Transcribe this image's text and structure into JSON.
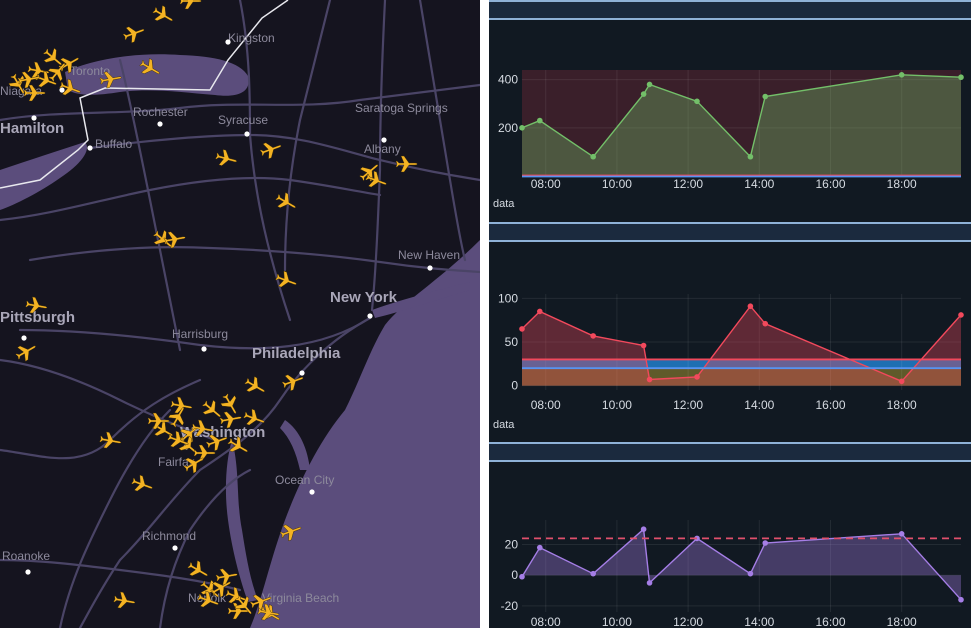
{
  "map": {
    "cities": [
      {
        "name": "Kingston",
        "big": false
      },
      {
        "name": "Rochester",
        "big": false
      },
      {
        "name": "Syracuse",
        "big": false
      },
      {
        "name": "Saratoga Springs",
        "big": false
      },
      {
        "name": "Albany",
        "big": false
      },
      {
        "name": "Hamilton",
        "big": true
      },
      {
        "name": "Buffalo",
        "big": false
      },
      {
        "name": "New Haven",
        "big": false
      },
      {
        "name": "New York",
        "big": true
      },
      {
        "name": "Pittsburgh",
        "big": true
      },
      {
        "name": "Harrisburg",
        "big": false
      },
      {
        "name": "Philadelphia",
        "big": true
      },
      {
        "name": "Washington",
        "big": true
      },
      {
        "name": "Fairfax",
        "big": false
      },
      {
        "name": "Ocean City",
        "big": false
      },
      {
        "name": "Richmond",
        "big": false
      },
      {
        "name": "Roanoke",
        "big": false
      },
      {
        "name": "Norfolk",
        "big": false
      },
      {
        "name": "Virginia Beach",
        "big": false
      },
      {
        "name": "Niagara",
        "big": false
      },
      {
        "name": "Toronto",
        "big": false
      }
    ],
    "aircraft_count": 58,
    "colors": {
      "land": "#15141f",
      "water": "#5b4d7c",
      "roads": "#4a4466",
      "aircraft": "#f4b323",
      "border": "#e8e8ee"
    }
  },
  "panels": [
    {
      "title": "",
      "chart_data": {
        "type": "area",
        "x_label": "data",
        "x_ticks": [
          "08:00",
          "10:00",
          "12:00",
          "14:00",
          "16:00",
          "18:00"
        ],
        "y_ticks": [
          200,
          400
        ],
        "ylim": [
          0,
          440
        ],
        "xlim": [
          "07:20",
          "19:40"
        ],
        "thresholds": [
          {
            "value": 2,
            "color": "#f2495c"
          },
          {
            "value": -2,
            "color": "#5794f2"
          }
        ],
        "bands": [
          {
            "from": 0,
            "to": 440,
            "color": "#3a1f2a"
          }
        ],
        "series": [
          {
            "color": "#73bf69",
            "x": [
              "07:20",
              "07:50",
              "09:20",
              "10:45",
              "10:55",
              "12:15",
              "13:45",
              "14:10",
              "18:00",
              "19:40"
            ],
            "values": [
              200,
              230,
              80,
              340,
              380,
              310,
              80,
              330,
              420,
              410
            ]
          }
        ]
      }
    },
    {
      "title": "",
      "chart_data": {
        "type": "area",
        "x_label": "data",
        "x_ticks": [
          "08:00",
          "10:00",
          "12:00",
          "14:00",
          "16:00",
          "18:00"
        ],
        "y_ticks": [
          0,
          50,
          100
        ],
        "ylim": [
          -5,
          105
        ],
        "xlim": [
          "07:20",
          "19:40"
        ],
        "thresholds": [
          {
            "value": 30,
            "color": "#f2495c"
          },
          {
            "value": 20,
            "color": "#5794f2"
          }
        ],
        "bands": [
          {
            "from": 0,
            "to": 30,
            "color": "#5f5a2a"
          },
          {
            "from": 20,
            "to": 30,
            "color": "#1f6fb2"
          }
        ],
        "series": [
          {
            "color": "#f2495c",
            "x": [
              "07:20",
              "07:50",
              "09:20",
              "10:45",
              "10:55",
              "12:15",
              "13:45",
              "14:10",
              "18:00",
              "19:40"
            ],
            "values": [
              65,
              85,
              57,
              46,
              7,
              10,
              91,
              71,
              5,
              81
            ]
          }
        ]
      }
    },
    {
      "title": "",
      "chart_data": {
        "type": "area",
        "x_label": "",
        "x_ticks": [
          "08:00",
          "10:00",
          "12:00",
          "14:00",
          "16:00",
          "18:00"
        ],
        "y_ticks": [
          -20,
          0,
          20
        ],
        "ylim": [
          -24,
          36
        ],
        "xlim": [
          "07:20",
          "19:40"
        ],
        "thresholds": [
          {
            "value": 24,
            "color": "#e0506c",
            "dashed": true
          }
        ],
        "bands": [],
        "series": [
          {
            "color": "#a57ee6",
            "x": [
              "07:20",
              "07:50",
              "09:20",
              "10:45",
              "10:55",
              "12:15",
              "13:45",
              "14:10",
              "18:00",
              "19:40"
            ],
            "values": [
              -1,
              18,
              1,
              30,
              -5,
              24,
              1,
              21,
              27,
              -16
            ]
          }
        ]
      }
    }
  ]
}
